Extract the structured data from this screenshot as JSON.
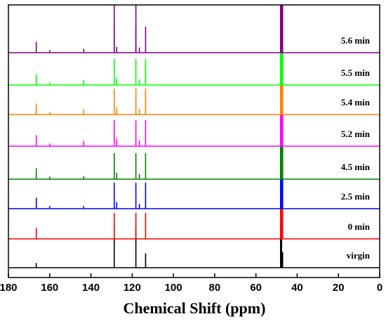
{
  "chart_data": {
    "type": "line",
    "title": "",
    "xlabel": "Chemical Shift (ppm)",
    "ylabel": "",
    "xlim": [
      180,
      0
    ],
    "x_reversed": true,
    "x_ticks": [
      180,
      160,
      140,
      120,
      100,
      80,
      60,
      40,
      20,
      0
    ],
    "grid": false,
    "legend": "none (labels placed above each trace at right)",
    "series": [
      {
        "name": "virgin",
        "color": "#000000",
        "peaks": [
          [
            166.5,
            0.18
          ],
          [
            128.7,
            1.0
          ],
          [
            118.2,
            1.0
          ],
          [
            113.5,
            0.55
          ],
          [
            47.8,
            1.0
          ],
          [
            47.3,
            0.6
          ]
        ]
      },
      {
        "name": "0 min",
        "color": "#ff0000",
        "peaks": [
          [
            166.5,
            0.42
          ],
          [
            128.7,
            1.0
          ],
          [
            118.2,
            1.0
          ],
          [
            113.5,
            1.0
          ],
          [
            47.8,
            1.0
          ],
          [
            47.3,
            1.0
          ]
        ]
      },
      {
        "name": "2.5 min",
        "color": "#0000ff",
        "peaks": [
          [
            166.5,
            0.42
          ],
          [
            160.0,
            0.1
          ],
          [
            143.5,
            0.1
          ],
          [
            128.7,
            1.0
          ],
          [
            127.5,
            0.25
          ],
          [
            118.2,
            1.0
          ],
          [
            116.5,
            0.18
          ],
          [
            113.5,
            1.0
          ],
          [
            47.8,
            1.0
          ],
          [
            47.3,
            1.0
          ]
        ]
      },
      {
        "name": "4.5 min",
        "color": "#008000",
        "peaks": [
          [
            166.5,
            0.42
          ],
          [
            160.0,
            0.1
          ],
          [
            143.5,
            0.12
          ],
          [
            128.7,
            1.0
          ],
          [
            127.5,
            0.25
          ],
          [
            118.2,
            1.0
          ],
          [
            116.5,
            0.2
          ],
          [
            113.5,
            1.0
          ],
          [
            47.8,
            1.0
          ],
          [
            47.3,
            1.0
          ]
        ]
      },
      {
        "name": "5.2 min",
        "color": "#ff00ff",
        "peaks": [
          [
            166.5,
            0.42
          ],
          [
            160.0,
            0.1
          ],
          [
            143.5,
            0.2
          ],
          [
            128.7,
            1.0
          ],
          [
            127.5,
            0.28
          ],
          [
            118.2,
            1.0
          ],
          [
            116.5,
            0.22
          ],
          [
            113.5,
            1.0
          ],
          [
            47.8,
            1.0
          ],
          [
            47.3,
            1.0
          ]
        ]
      },
      {
        "name": "5.4 min",
        "color": "#ff8000",
        "peaks": [
          [
            166.5,
            0.42
          ],
          [
            160.0,
            0.1
          ],
          [
            143.5,
            0.2
          ],
          [
            128.7,
            1.0
          ],
          [
            127.5,
            0.28
          ],
          [
            118.2,
            1.0
          ],
          [
            116.5,
            0.22
          ],
          [
            113.5,
            1.0
          ],
          [
            47.8,
            1.0
          ],
          [
            47.3,
            1.0
          ]
        ]
      },
      {
        "name": "5.5 min",
        "color": "#00ff00",
        "peaks": [
          [
            166.5,
            0.42
          ],
          [
            160.0,
            0.1
          ],
          [
            143.5,
            0.2
          ],
          [
            128.7,
            1.0
          ],
          [
            127.5,
            0.28
          ],
          [
            118.2,
            1.0
          ],
          [
            116.5,
            0.22
          ],
          [
            113.5,
            1.0
          ],
          [
            47.8,
            1.0
          ],
          [
            47.3,
            1.0
          ]
        ]
      },
      {
        "name": "5.6 min",
        "color": "#800080",
        "peaks": [
          [
            166.5,
            0.42
          ],
          [
            160.0,
            0.1
          ],
          [
            143.5,
            0.15
          ],
          [
            128.7,
            1.0
          ],
          [
            127.5,
            0.22
          ],
          [
            118.2,
            1.0
          ],
          [
            116.5,
            0.2
          ],
          [
            113.5,
            1.0
          ],
          [
            47.8,
            1.0
          ],
          [
            47.3,
            1.0
          ]
        ]
      }
    ]
  }
}
